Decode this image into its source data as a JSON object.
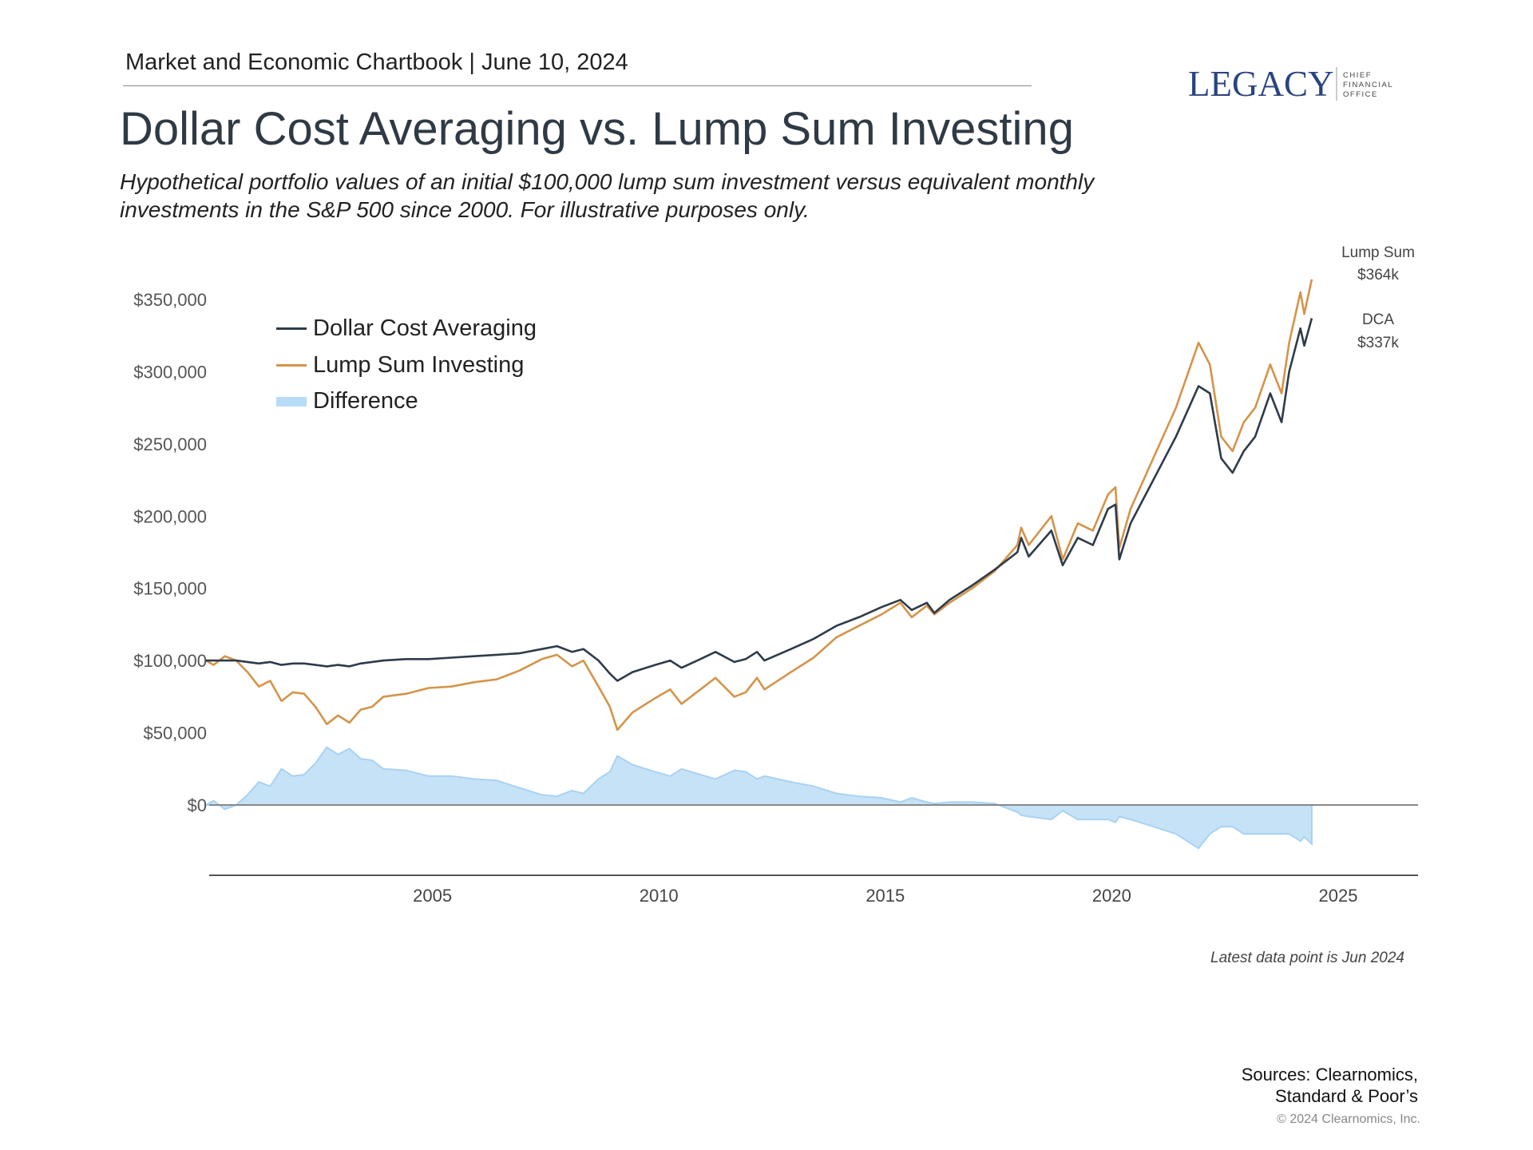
{
  "header": {
    "chartbook": "Market and Economic Chartbook | June 10, 2024",
    "title": "Dollar Cost Averaging vs. Lump Sum Investing",
    "subtitle_line1": "Hypothetical portfolio values of an initial $100,000 lump sum investment versus equivalent monthly",
    "subtitle_line2": "investments in the S&P 500 since 2000. For illustrative purposes only."
  },
  "logo": {
    "name": "LEGACY",
    "tagline": [
      "CHIEF",
      "FINANCIAL",
      "OFFICE"
    ],
    "color": "#2b4480"
  },
  "end_labels": {
    "lump_name": "Lump Sum",
    "lump_value": "$364k",
    "dca_name": "DCA",
    "dca_value": "$337k"
  },
  "footer": {
    "latest": "Latest data point is Jun 2024",
    "sources_line1": "Sources: Clearnomics,",
    "sources_line2": "Standard & Poor’s",
    "copyright": "© 2024 Clearnomics, Inc."
  },
  "chart_data": {
    "type": "line",
    "title": "",
    "xlabel": "",
    "ylabel": "",
    "xlim": [
      "2000-01",
      "2026-08"
    ],
    "ylim": [
      -50000,
      375000
    ],
    "x_ticks": [
      "2005",
      "2010",
      "2015",
      "2020",
      "2025"
    ],
    "y_ticks": [
      {
        "value": 350000,
        "label": "$350,000"
      },
      {
        "value": 300000,
        "label": "$300,000"
      },
      {
        "value": 250000,
        "label": "$250,000"
      },
      {
        "value": 200000,
        "label": "$200,000"
      },
      {
        "value": 150000,
        "label": "$150,000"
      },
      {
        "value": 100000,
        "label": "$100,000"
      },
      {
        "value": 50000,
        "label": "$50,000"
      },
      {
        "value": 0,
        "label": "$0"
      }
    ],
    "grid": false,
    "legend_position": "top-left",
    "x": [
      "2000-01",
      "2000-03",
      "2000-06",
      "2000-09",
      "2000-12",
      "2001-03",
      "2001-06",
      "2001-09",
      "2001-12",
      "2002-03",
      "2002-06",
      "2002-09",
      "2002-12",
      "2003-03",
      "2003-06",
      "2003-09",
      "2003-12",
      "2004-06",
      "2004-12",
      "2005-06",
      "2005-12",
      "2006-06",
      "2006-12",
      "2007-06",
      "2007-10",
      "2008-02",
      "2008-05",
      "2008-09",
      "2008-12",
      "2009-02",
      "2009-06",
      "2009-12",
      "2010-04",
      "2010-07",
      "2010-12",
      "2011-04",
      "2011-09",
      "2011-12",
      "2012-03",
      "2012-05",
      "2012-12",
      "2013-06",
      "2013-12",
      "2014-06",
      "2014-12",
      "2015-05",
      "2015-08",
      "2015-12",
      "2016-02",
      "2016-06",
      "2016-12",
      "2017-06",
      "2017-12",
      "2018-01",
      "2018-03",
      "2018-09",
      "2018-12",
      "2019-04",
      "2019-08",
      "2019-12",
      "2020-02",
      "2020-03",
      "2020-06",
      "2020-12",
      "2021-06",
      "2021-12",
      "2022-03",
      "2022-06",
      "2022-09",
      "2022-12",
      "2023-03",
      "2023-07",
      "2023-10",
      "2023-12",
      "2024-03",
      "2024-04",
      "2024-06"
    ],
    "series": [
      {
        "name": "Dollar Cost Averaging",
        "color": "#2e3b4a",
        "values": [
          100000,
          100000,
          100000,
          100000,
          99000,
          98000,
          99000,
          97000,
          98000,
          98000,
          97000,
          96000,
          97000,
          96000,
          98000,
          99000,
          100000,
          101000,
          101000,
          102000,
          103000,
          104000,
          105000,
          108000,
          110000,
          106000,
          108000,
          100000,
          91000,
          86000,
          92000,
          97000,
          100000,
          95000,
          101000,
          106000,
          99000,
          101000,
          106000,
          100000,
          108000,
          115000,
          124000,
          130000,
          137000,
          142000,
          135000,
          140000,
          133000,
          142000,
          152000,
          163000,
          175000,
          185000,
          172000,
          190000,
          166000,
          185000,
          180000,
          205000,
          208000,
          170000,
          195000,
          225000,
          255000,
          290000,
          285000,
          240000,
          230000,
          245000,
          255000,
          285000,
          265000,
          300000,
          330000,
          318000,
          337000
        ]
      },
      {
        "name": "Lump Sum Investing",
        "color": "#d4944a",
        "values": [
          100000,
          97000,
          103000,
          100000,
          92000,
          82000,
          86000,
          72000,
          78000,
          77000,
          68000,
          56000,
          62000,
          57000,
          66000,
          68000,
          75000,
          77000,
          81000,
          82000,
          85000,
          87000,
          93000,
          101000,
          104000,
          96000,
          100000,
          82000,
          68000,
          52000,
          64000,
          74000,
          80000,
          70000,
          80000,
          88000,
          75000,
          78000,
          88000,
          80000,
          92000,
          102000,
          116000,
          124000,
          132000,
          140000,
          130000,
          138000,
          132000,
          140000,
          150000,
          162000,
          180000,
          192000,
          180000,
          200000,
          170000,
          195000,
          190000,
          215000,
          220000,
          178000,
          205000,
          240000,
          275000,
          320000,
          305000,
          255000,
          245000,
          265000,
          275000,
          305000,
          285000,
          320000,
          355000,
          340000,
          364000
        ]
      },
      {
        "name": "Difference",
        "color": "#c6e2f7",
        "type": "area",
        "values": [
          0,
          3000,
          -3000,
          0,
          7000,
          16000,
          13000,
          25000,
          20000,
          21000,
          29000,
          40000,
          35000,
          39000,
          32000,
          31000,
          25000,
          24000,
          20000,
          20000,
          18000,
          17000,
          12000,
          7000,
          6000,
          10000,
          8000,
          18000,
          23000,
          34000,
          28000,
          23000,
          20000,
          25000,
          21000,
          18000,
          24000,
          23000,
          18000,
          20000,
          16000,
          13000,
          8000,
          6000,
          5000,
          2000,
          5000,
          2000,
          1000,
          2000,
          2000,
          1000,
          -5000,
          -7000,
          -8000,
          -10000,
          -4000,
          -10000,
          -10000,
          -10000,
          -12000,
          -8000,
          -10000,
          -15000,
          -20000,
          -30000,
          -20000,
          -15000,
          -15000,
          -20000,
          -20000,
          -20000,
          -20000,
          -20000,
          -25000,
          -22000,
          -27000
        ]
      }
    ]
  }
}
